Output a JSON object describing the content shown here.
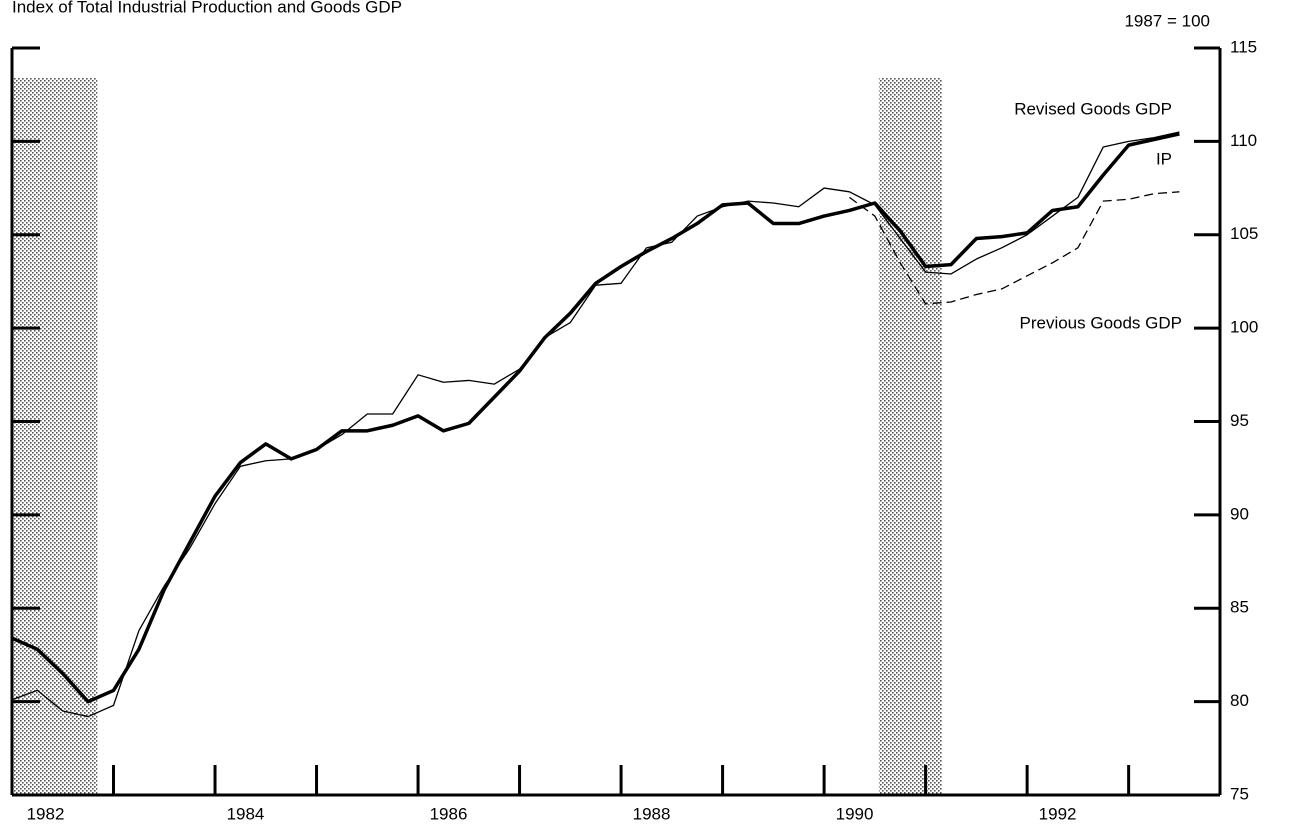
{
  "chart_data": {
    "type": "line",
    "title": "Index of Total Industrial Production and Goods GDP",
    "unit_label": "1987 = 100",
    "x": [
      1982.0,
      1982.25,
      1982.5,
      1982.75,
      1983.0,
      1983.25,
      1983.5,
      1983.75,
      1984.0,
      1984.25,
      1984.5,
      1984.75,
      1985.0,
      1985.25,
      1985.5,
      1985.75,
      1986.0,
      1986.25,
      1986.5,
      1986.75,
      1987.0,
      1987.25,
      1987.5,
      1987.75,
      1988.0,
      1988.25,
      1988.5,
      1988.75,
      1989.0,
      1989.25,
      1989.5,
      1989.75,
      1990.0,
      1990.25,
      1990.5,
      1990.75,
      1991.0,
      1991.25,
      1991.5,
      1991.75,
      1992.0,
      1992.25,
      1992.5,
      1992.75,
      1993.0,
      1993.25,
      1993.5
    ],
    "series": [
      {
        "name": "IP",
        "color": "#000000",
        "style": "thick",
        "values": [
          83.4,
          82.8,
          81.5,
          80.0,
          80.6,
          82.8,
          86.0,
          88.5,
          91.0,
          92.8,
          93.8,
          93.0,
          93.5,
          94.5,
          94.5,
          94.8,
          95.3,
          94.5,
          94.9,
          96.3,
          97.7,
          99.5,
          100.8,
          102.4,
          103.3,
          104.1,
          104.8,
          105.6,
          106.6,
          106.7,
          105.6,
          105.6,
          106.0,
          106.3,
          106.7,
          105.2,
          103.3,
          103.4,
          104.8,
          104.9,
          105.1,
          106.3,
          106.5,
          108.2,
          109.8,
          110.1,
          110.4
        ]
      },
      {
        "name": "Revised Goods GDP",
        "color": "#000000",
        "style": "thin",
        "values": [
          80.1,
          80.6,
          79.5,
          79.2,
          79.8,
          83.8,
          86.2,
          88.2,
          90.6,
          92.6,
          92.9,
          93.0,
          93.5,
          94.3,
          95.4,
          95.4,
          97.5,
          97.1,
          97.2,
          97.0,
          97.8,
          99.5,
          100.3,
          102.3,
          102.4,
          104.3,
          104.6,
          106.0,
          106.5,
          106.8,
          106.7,
          106.5,
          107.5,
          107.3,
          106.6,
          104.8,
          103.0,
          102.9,
          103.7,
          104.3,
          105.0,
          106.0,
          107.0,
          109.7,
          110.0,
          110.2,
          110.5
        ]
      },
      {
        "name": "Previous Goods GDP",
        "color": "#000000",
        "style": "dashed",
        "values": [
          null,
          null,
          null,
          null,
          null,
          null,
          null,
          null,
          null,
          null,
          null,
          null,
          null,
          null,
          null,
          null,
          null,
          null,
          null,
          null,
          null,
          null,
          null,
          null,
          null,
          null,
          null,
          null,
          null,
          null,
          null,
          null,
          null,
          107.0,
          106.0,
          103.5,
          101.3,
          101.4,
          101.8,
          102.1,
          102.8,
          103.5,
          104.3,
          106.8,
          106.9,
          107.2,
          107.3
        ]
      }
    ],
    "recessions": [
      [
        1982.0,
        1982.84
      ],
      [
        1990.54,
        1991.16
      ]
    ],
    "xlim": [
      1982.0,
      1993.9
    ],
    "xticks": [
      1983,
      1984,
      1985,
      1986,
      1987,
      1988,
      1989,
      1990,
      1991,
      1992,
      1993
    ],
    "xtick_labels": [
      {
        "value": 1982.33,
        "label": "1982"
      },
      {
        "value": 1984.3,
        "label": "1984"
      },
      {
        "value": 1986.3,
        "label": "1986"
      },
      {
        "value": 1988.3,
        "label": "1988"
      },
      {
        "value": 1990.3,
        "label": "1990"
      },
      {
        "value": 1992.3,
        "label": "1992"
      }
    ],
    "ylim": [
      75,
      115
    ],
    "yticks": [
      75,
      80,
      85,
      90,
      95,
      100,
      105,
      110,
      115
    ]
  }
}
